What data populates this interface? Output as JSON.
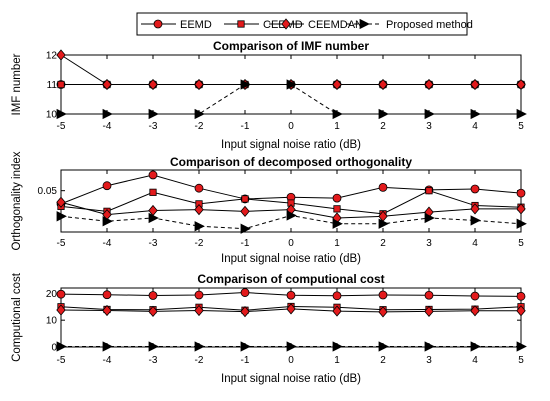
{
  "legend": [
    {
      "label": "EEMD",
      "marker": "circle",
      "dash": false
    },
    {
      "label": "CEEMD",
      "marker": "square",
      "dash": false
    },
    {
      "label": "CEEMDAN",
      "marker": "diamond",
      "dash": false
    },
    {
      "label": "Proposed method",
      "marker": "triangle-right",
      "dash": true
    }
  ],
  "colors": {
    "marker_fill": "#e31a1c",
    "line": "#000000",
    "proposed_fill": "#000000"
  },
  "chart_data": [
    {
      "type": "line",
      "title": "Comparison of  IMF number",
      "xlabel": "Input signal noise ratio (dB)",
      "ylabel": "IMF number",
      "x": [
        -5,
        -4,
        -3,
        -2,
        -1,
        0,
        1,
        2,
        3,
        4,
        5
      ],
      "xlim": [
        -5,
        5
      ],
      "ylim": [
        10,
        12
      ],
      "yticks": [
        10,
        11,
        12
      ],
      "series": [
        {
          "name": "EEMD",
          "values": [
            11,
            11,
            11,
            11,
            11,
            11,
            11,
            11,
            11,
            11,
            11
          ]
        },
        {
          "name": "CEEMD",
          "values": [
            11,
            11,
            11,
            11,
            11,
            11,
            11,
            11,
            11,
            11,
            11
          ]
        },
        {
          "name": "CEEMDAN",
          "values": [
            12,
            11,
            11,
            11,
            11,
            11,
            11,
            11,
            11,
            11,
            11
          ]
        },
        {
          "name": "Proposed method",
          "values": [
            10,
            10,
            10,
            10,
            11,
            11,
            10,
            10,
            10,
            10,
            10
          ]
        }
      ]
    },
    {
      "type": "line",
      "title": "Comparison of decomposed orthogonality",
      "xlabel": "Input signal noise ratio (dB)",
      "ylabel": "Orthogonality index",
      "x": [
        -5,
        -4,
        -3,
        -2,
        -1,
        0,
        1,
        2,
        3,
        4,
        5
      ],
      "xlim": [
        -5,
        5
      ],
      "ylim": [
        0,
        0.075
      ],
      "yticks": [
        0.05
      ],
      "series": [
        {
          "name": "EEMD",
          "values": [
            0.034,
            0.056,
            0.069,
            0.053,
            0.04,
            0.042,
            0.041,
            0.054,
            0.051,
            0.052,
            0.047
          ]
        },
        {
          "name": "CEEMD",
          "values": [
            0.031,
            0.025,
            0.048,
            0.034,
            0.04,
            0.035,
            0.028,
            0.022,
            0.05,
            0.032,
            0.03
          ]
        },
        {
          "name": "CEEMDAN",
          "values": [
            0.036,
            0.021,
            0.026,
            0.027,
            0.025,
            0.027,
            0.017,
            0.019,
            0.024,
            0.028,
            0.028
          ]
        },
        {
          "name": "Proposed method",
          "values": [
            0.019,
            0.013,
            0.017,
            0.007,
            0.004,
            0.02,
            0.01,
            0.01,
            0.017,
            0.014,
            0.01
          ]
        }
      ]
    },
    {
      "type": "line",
      "title": "Comparison of computional cost",
      "xlabel": "Input signal noise ratio (dB)",
      "ylabel": "Computional cost",
      "x": [
        -5,
        -4,
        -3,
        -2,
        -1,
        0,
        1,
        2,
        3,
        4,
        5
      ],
      "xlim": [
        -5,
        5
      ],
      "ylim": [
        0,
        22
      ],
      "yticks": [
        0,
        10,
        20
      ],
      "series": [
        {
          "name": "EEMD",
          "values": [
            19.7,
            19.5,
            19.2,
            19.4,
            20.3,
            19.3,
            19.1,
            19.4,
            19.3,
            19.0,
            18.9
          ]
        },
        {
          "name": "CEEMD",
          "values": [
            15.0,
            14.0,
            13.9,
            14.8,
            13.7,
            15.1,
            14.8,
            13.9,
            14.0,
            14.1,
            15.0
          ]
        },
        {
          "name": "CEEMDAN",
          "values": [
            13.8,
            13.6,
            13.3,
            13.6,
            13.2,
            14.2,
            13.4,
            13.1,
            13.3,
            13.5,
            13.5
          ]
        },
        {
          "name": "Proposed method",
          "values": [
            0.2,
            0.2,
            0.2,
            0.2,
            0.2,
            0.2,
            0.2,
            0.2,
            0.2,
            0.2,
            0.2
          ]
        }
      ]
    }
  ]
}
